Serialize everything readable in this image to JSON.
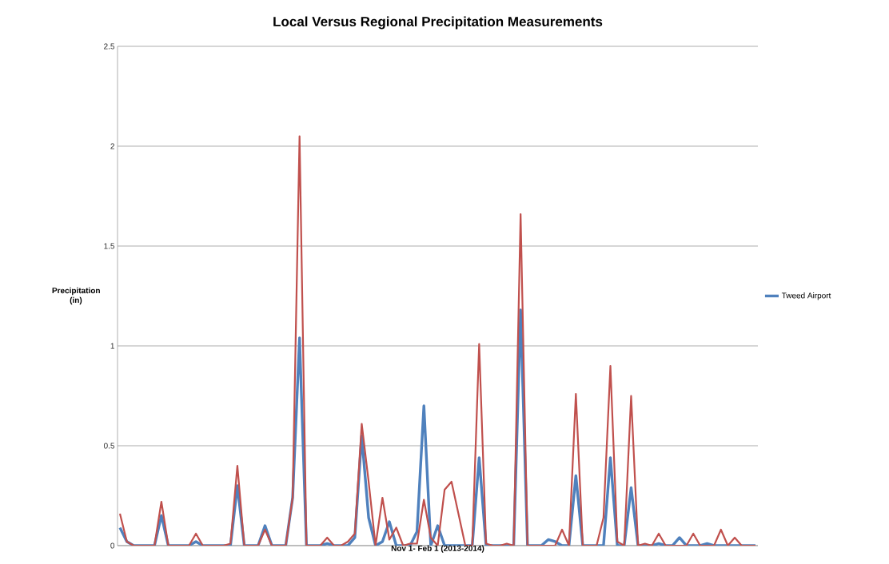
{
  "chart_data": {
    "type": "line",
    "title": "Local Versus Regional Precipitation Measurements",
    "xlabel": "Nov 1- Feb 1 (2013-2014)",
    "ylabel": "Precipitation (in)",
    "categories": [
      null,
      null,
      null,
      null,
      null,
      null,
      null,
      null,
      null,
      null,
      null,
      null,
      null,
      null,
      null,
      null,
      null,
      null,
      null,
      null,
      null,
      null,
      null,
      null,
      null,
      null,
      null,
      null,
      null,
      null,
      null,
      null,
      null,
      null,
      null,
      null,
      null,
      null,
      null,
      null,
      null,
      null,
      null,
      null,
      null,
      null,
      null,
      null,
      null,
      null,
      null,
      null,
      null,
      null,
      null,
      null,
      null,
      null,
      null,
      null,
      null,
      null,
      null,
      null,
      null,
      null,
      null,
      null,
      null,
      null,
      null,
      null,
      null,
      null,
      null,
      null,
      null,
      null,
      null,
      null,
      null,
      null,
      null,
      null,
      null,
      null,
      null,
      null,
      null,
      null,
      null,
      null,
      null
    ],
    "series": [
      {
        "name": "Tweed Airport",
        "color": "#4f81bd",
        "values": [
          0.09,
          0.02,
          0,
          0,
          0,
          0,
          0.15,
          0,
          0,
          0,
          0,
          0.02,
          0,
          0,
          0,
          0,
          0,
          0.3,
          0,
          0,
          0,
          0.1,
          0,
          0,
          0,
          0.24,
          1.04,
          0,
          0,
          0,
          0.01,
          0,
          0,
          0,
          0.04,
          0.55,
          0.14,
          0,
          0.02,
          0.12,
          0,
          0,
          0,
          0.07,
          0.7,
          0,
          0.1,
          0,
          0,
          0,
          0,
          0,
          0.44,
          0,
          0,
          0,
          0,
          0,
          1.18,
          0,
          0,
          0,
          0.03,
          0.02,
          0,
          0,
          0.35,
          0,
          0,
          0,
          0,
          0.44,
          0,
          0,
          0.29,
          0,
          0,
          0,
          0.01,
          0,
          0,
          0.04,
          0,
          0,
          0,
          0.01,
          0,
          0,
          0,
          0,
          0,
          0,
          0
        ]
      },
      {
        "color": "#c0504d",
        "values": [
          0.16,
          0.02,
          0,
          0,
          0,
          0,
          0.22,
          0,
          0,
          0,
          0,
          0.06,
          0,
          0,
          0,
          0,
          0.01,
          0.4,
          0,
          0,
          0,
          0.08,
          0,
          0,
          0,
          0.24,
          2.05,
          0,
          0,
          0,
          0.04,
          0,
          0,
          0.02,
          0.06,
          0.61,
          0.32,
          0,
          0.24,
          0.03,
          0.09,
          0,
          0.01,
          0.01,
          0.23,
          0.04,
          0,
          0.28,
          0.32,
          0.16,
          0,
          0,
          1.01,
          0.01,
          0,
          0,
          0.01,
          0,
          1.66,
          0,
          0,
          0,
          0,
          0,
          0.08,
          0,
          0.76,
          0,
          0,
          0,
          0.14,
          0.9,
          0.02,
          0,
          0.75,
          0,
          0.01,
          0,
          0.06,
          0,
          0,
          0,
          0,
          0.06,
          0,
          0,
          0,
          0.08,
          0,
          0.04,
          0,
          0,
          0
        ]
      }
    ],
    "ylim": [
      0,
      2.5
    ],
    "yticks": [
      0,
      0.5,
      1,
      1.5,
      2,
      2.5
    ],
    "grid": "y",
    "legend": "right",
    "marker": "none",
    "line_style": "solid"
  }
}
